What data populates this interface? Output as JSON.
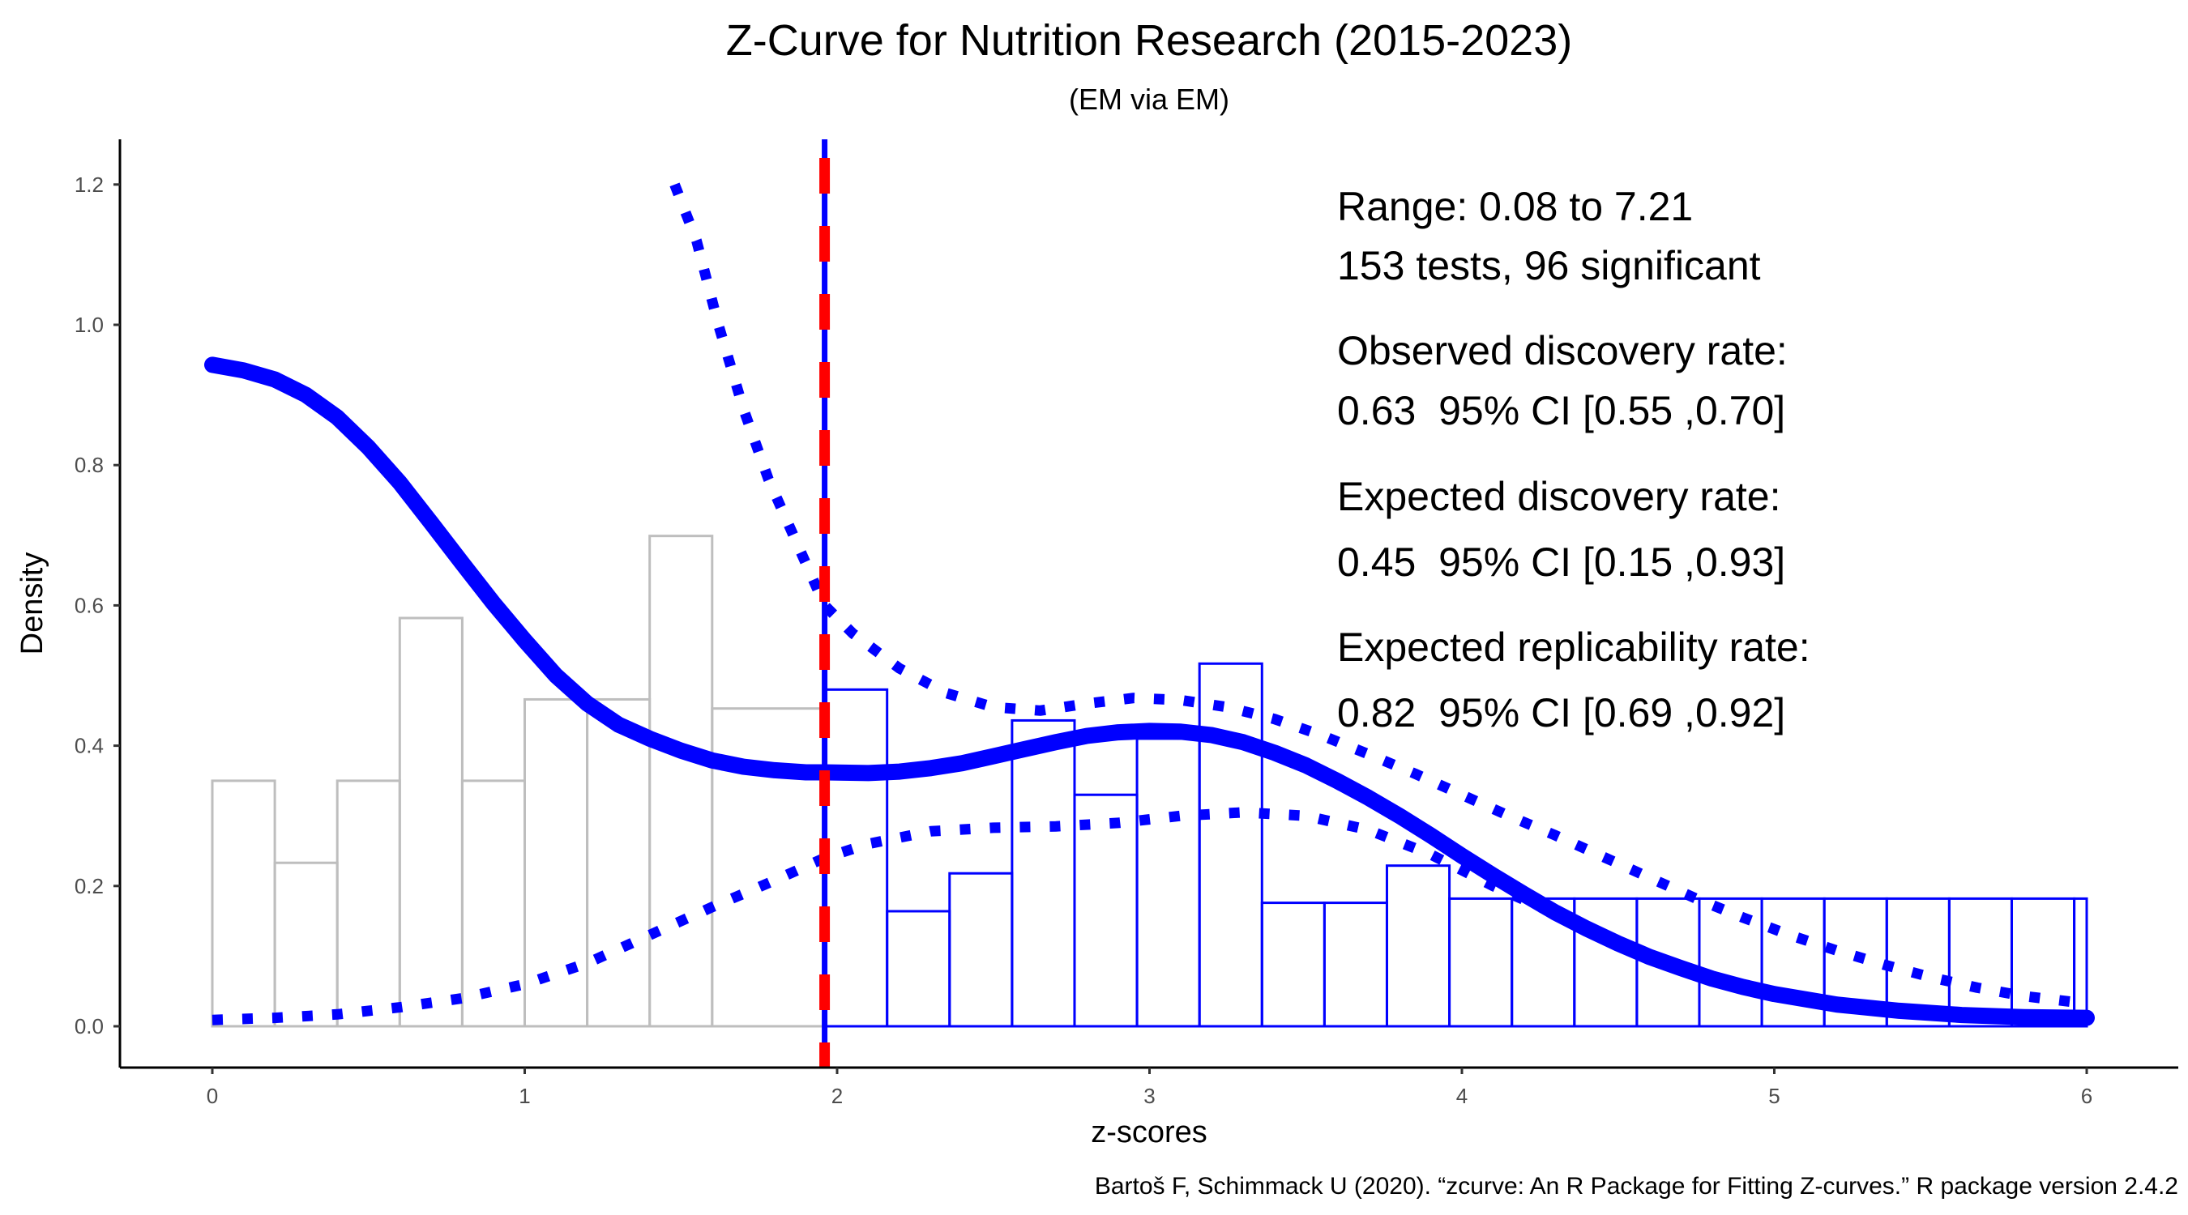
{
  "chart_data": {
    "type": "bar",
    "title": "Z-Curve for Nutrition Research (2015-2023)",
    "subtitle": "(EM via EM)",
    "xlabel": "z-scores",
    "ylabel": "Density",
    "caption": "Bartoš F, Schimmack U (2020). “zcurve: An R Package for Fitting Z-curves.” R package version 2.4.2",
    "xlim": [
      -0.3,
      6.3
    ],
    "ylim": [
      -0.06,
      1.27
    ],
    "x_ticks": [
      "0",
      "1",
      "2",
      "3",
      "4",
      "5",
      "6"
    ],
    "y_ticks": [
      "0.0",
      "0.2",
      "0.4",
      "0.6",
      "0.8",
      "1.0",
      "1.2"
    ],
    "grid": false,
    "significance_threshold": 1.96,
    "histogram_nonsignificant": {
      "color": "#bebebe",
      "bins": [
        {
          "x0": 0.0,
          "x1": 0.2,
          "density": 0.35
        },
        {
          "x0": 0.2,
          "x1": 0.4,
          "density": 0.233
        },
        {
          "x0": 0.4,
          "x1": 0.6,
          "density": 0.35
        },
        {
          "x0": 0.6,
          "x1": 0.8,
          "density": 0.582
        },
        {
          "x0": 0.8,
          "x1": 1.0,
          "density": 0.35
        },
        {
          "x0": 1.0,
          "x1": 1.2,
          "density": 0.466
        },
        {
          "x0": 1.2,
          "x1": 1.4,
          "density": 0.466
        },
        {
          "x0": 1.4,
          "x1": 1.6,
          "density": 0.699
        },
        {
          "x0": 1.6,
          "x1": 1.96,
          "density": 0.453
        }
      ]
    },
    "histogram_significant": {
      "color": "#0000ff",
      "bins": [
        {
          "x0": 1.96,
          "x1": 2.16,
          "density": 0.48
        },
        {
          "x0": 2.16,
          "x1": 2.36,
          "density": 0.164
        },
        {
          "x0": 2.36,
          "x1": 2.56,
          "density": 0.218
        },
        {
          "x0": 2.56,
          "x1": 2.76,
          "density": 0.436
        },
        {
          "x0": 2.76,
          "x1": 2.96,
          "density": 0.33
        },
        {
          "x0": 2.96,
          "x1": 3.16,
          "density": 0.41
        },
        {
          "x0": 3.16,
          "x1": 3.36,
          "density": 0.517
        },
        {
          "x0": 3.36,
          "x1": 3.56,
          "density": 0.176
        },
        {
          "x0": 3.56,
          "x1": 3.76,
          "density": 0.176
        },
        {
          "x0": 3.76,
          "x1": 3.96,
          "density": 0.229
        },
        {
          "x0": 3.96,
          "x1": 4.16,
          "density": 0.182
        },
        {
          "x0": 4.16,
          "x1": 4.36,
          "density": 0.182
        },
        {
          "x0": 4.36,
          "x1": 4.56,
          "density": 0.182
        },
        {
          "x0": 4.56,
          "x1": 4.76,
          "density": 0.182
        },
        {
          "x0": 4.76,
          "x1": 4.96,
          "density": 0.182
        },
        {
          "x0": 4.96,
          "x1": 5.16,
          "density": 0.182
        },
        {
          "x0": 5.16,
          "x1": 5.36,
          "density": 0.182
        },
        {
          "x0": 5.36,
          "x1": 5.56,
          "density": 0.182
        },
        {
          "x0": 5.56,
          "x1": 5.76,
          "density": 0.182
        },
        {
          "x0": 5.76,
          "x1": 5.96,
          "density": 0.182
        },
        {
          "x0": 5.96,
          "x1": 6.0,
          "density": 0.182
        }
      ]
    },
    "series": [
      {
        "style": "solid",
        "color": "#0000ff",
        "points": [
          [
            0.0,
            0.943
          ],
          [
            0.1,
            0.935
          ],
          [
            0.2,
            0.922
          ],
          [
            0.3,
            0.9
          ],
          [
            0.4,
            0.868
          ],
          [
            0.5,
            0.825
          ],
          [
            0.6,
            0.775
          ],
          [
            0.7,
            0.718
          ],
          [
            0.8,
            0.66
          ],
          [
            0.9,
            0.603
          ],
          [
            1.0,
            0.55
          ],
          [
            1.1,
            0.5
          ],
          [
            1.2,
            0.46
          ],
          [
            1.3,
            0.43
          ],
          [
            1.4,
            0.41
          ],
          [
            1.5,
            0.393
          ],
          [
            1.6,
            0.379
          ],
          [
            1.7,
            0.37
          ],
          [
            1.8,
            0.365
          ],
          [
            1.9,
            0.362
          ],
          [
            1.96,
            0.362
          ],
          [
            2.1,
            0.361
          ],
          [
            2.2,
            0.363
          ],
          [
            2.3,
            0.368
          ],
          [
            2.4,
            0.375
          ],
          [
            2.5,
            0.385
          ],
          [
            2.6,
            0.395
          ],
          [
            2.7,
            0.405
          ],
          [
            2.8,
            0.414
          ],
          [
            2.9,
            0.419
          ],
          [
            3.0,
            0.421
          ],
          [
            3.1,
            0.42
          ],
          [
            3.2,
            0.415
          ],
          [
            3.3,
            0.405
          ],
          [
            3.4,
            0.39
          ],
          [
            3.5,
            0.372
          ],
          [
            3.6,
            0.35
          ],
          [
            3.7,
            0.326
          ],
          [
            3.8,
            0.3
          ],
          [
            3.9,
            0.272
          ],
          [
            4.0,
            0.243
          ],
          [
            4.1,
            0.215
          ],
          [
            4.2,
            0.188
          ],
          [
            4.3,
            0.162
          ],
          [
            4.4,
            0.139
          ],
          [
            4.5,
            0.118
          ],
          [
            4.6,
            0.099
          ],
          [
            4.7,
            0.083
          ],
          [
            4.8,
            0.068
          ],
          [
            4.9,
            0.056
          ],
          [
            5.0,
            0.046
          ],
          [
            5.2,
            0.031
          ],
          [
            5.4,
            0.022
          ],
          [
            5.6,
            0.016
          ],
          [
            5.8,
            0.013
          ],
          [
            6.0,
            0.012
          ]
        ]
      },
      {
        "style": "dotted",
        "color": "#0000ff",
        "points": [
          [
            1.48,
            1.2
          ],
          [
            1.55,
            1.12
          ],
          [
            1.62,
            1.0
          ],
          [
            1.7,
            0.88
          ],
          [
            1.78,
            0.78
          ],
          [
            1.86,
            0.7
          ],
          [
            1.96,
            0.6
          ],
          [
            2.05,
            0.56
          ],
          [
            2.2,
            0.51
          ],
          [
            2.35,
            0.475
          ],
          [
            2.5,
            0.455
          ],
          [
            2.65,
            0.45
          ],
          [
            2.8,
            0.46
          ],
          [
            2.95,
            0.468
          ],
          [
            3.1,
            0.465
          ],
          [
            3.25,
            0.455
          ],
          [
            3.4,
            0.438
          ],
          [
            3.55,
            0.415
          ],
          [
            3.7,
            0.388
          ],
          [
            3.85,
            0.36
          ],
          [
            4.0,
            0.33
          ],
          [
            4.15,
            0.3
          ],
          [
            4.3,
            0.272
          ],
          [
            4.45,
            0.242
          ],
          [
            4.6,
            0.212
          ],
          [
            4.75,
            0.182
          ],
          [
            4.9,
            0.155
          ],
          [
            5.05,
            0.13
          ],
          [
            5.2,
            0.108
          ],
          [
            5.35,
            0.088
          ],
          [
            5.5,
            0.07
          ],
          [
            5.65,
            0.055
          ],
          [
            5.8,
            0.043
          ],
          [
            5.95,
            0.035
          ]
        ]
      },
      {
        "style": "dotted",
        "color": "#0000ff",
        "points": [
          [
            0.0,
            0.009
          ],
          [
            0.2,
            0.012
          ],
          [
            0.4,
            0.017
          ],
          [
            0.6,
            0.027
          ],
          [
            0.8,
            0.04
          ],
          [
            1.0,
            0.06
          ],
          [
            1.2,
            0.09
          ],
          [
            1.4,
            0.13
          ],
          [
            1.6,
            0.17
          ],
          [
            1.8,
            0.208
          ],
          [
            1.96,
            0.24
          ],
          [
            2.1,
            0.26
          ],
          [
            2.3,
            0.278
          ],
          [
            2.5,
            0.283
          ],
          [
            2.7,
            0.285
          ],
          [
            2.9,
            0.29
          ],
          [
            3.1,
            0.3
          ],
          [
            3.3,
            0.305
          ],
          [
            3.5,
            0.3
          ],
          [
            3.7,
            0.28
          ],
          [
            3.9,
            0.245
          ],
          [
            4.1,
            0.2
          ],
          [
            4.3,
            0.16
          ],
          [
            4.5,
            0.12
          ],
          [
            4.7,
            0.085
          ],
          [
            4.9,
            0.058
          ],
          [
            5.1,
            0.038
          ],
          [
            5.3,
            0.025
          ],
          [
            5.5,
            0.017
          ],
          [
            5.7,
            0.012
          ],
          [
            5.95,
            0.01
          ]
        ]
      }
    ],
    "annotations": [
      "Range: 0.08 to 7.21",
      "153 tests, 96 significant",
      "Observed discovery rate:",
      "0.63  95% CI [0.55 ,0.70]",
      "Expected discovery rate:",
      "0.45  95% CI [0.15 ,0.93]",
      "Expected replicability rate:",
      "0.82  95% CI [0.69 ,0.92]"
    ],
    "colors": {
      "axis": "#000000",
      "tick_label": "#4d4d4d",
      "threshold_blue": "#0000ff",
      "threshold_red": "#ff0000"
    }
  }
}
